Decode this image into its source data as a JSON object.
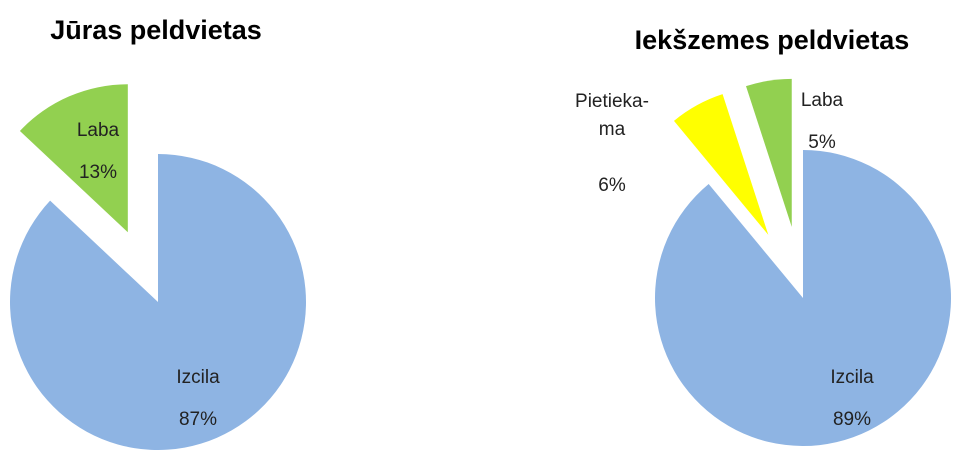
{
  "chart_data": [
    {
      "type": "pie",
      "title": "Jūras peldvietas",
      "categories": [
        "Izcila",
        "Laba"
      ],
      "values": [
        87,
        13
      ],
      "value_labels": [
        "87%",
        "13%"
      ],
      "colors": [
        "#8eb4e3",
        "#92d050"
      ],
      "explode": [
        false,
        true
      ]
    },
    {
      "type": "pie",
      "title": "Iekšzemes peldvietas",
      "categories": [
        "Izcila",
        "Pietieka-ma",
        "Laba"
      ],
      "values": [
        89,
        6,
        5
      ],
      "value_labels": [
        "89%",
        "6%",
        "5%"
      ],
      "colors": [
        "#8eb4e3",
        "#ffff00",
        "#92d050"
      ],
      "explode": [
        false,
        true,
        true
      ]
    }
  ]
}
